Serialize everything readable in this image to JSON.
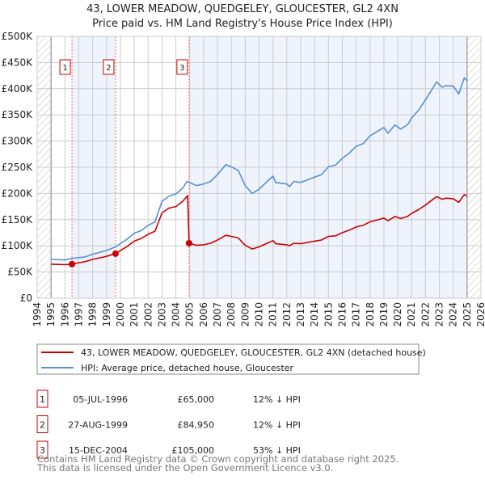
{
  "chart_data": {
    "type": "line",
    "title": "43, LOWER MEADOW, QUEDGELEY, GLOUCESTER, GL2 4XN",
    "subtitle": "Price paid vs. HM Land Registry's House Price Index (HPI)",
    "xlim": [
      1994,
      2026
    ],
    "ylim": [
      0,
      500000
    ],
    "x_ticks": [
      "1994",
      "1995",
      "1996",
      "1997",
      "1998",
      "1999",
      "2000",
      "2001",
      "2002",
      "2003",
      "2004",
      "2005",
      "2006",
      "2007",
      "2008",
      "2009",
      "2010",
      "2011",
      "2012",
      "2013",
      "2014",
      "2015",
      "2016",
      "2017",
      "2018",
      "2019",
      "2020",
      "2021",
      "2022",
      "2023",
      "2024",
      "2025",
      "2026"
    ],
    "y_ticks": [
      {
        "value": 0,
        "label": "£0"
      },
      {
        "value": 50000,
        "label": "£50K"
      },
      {
        "value": 100000,
        "label": "£100K"
      },
      {
        "value": 150000,
        "label": "£150K"
      },
      {
        "value": 200000,
        "label": "£200K"
      },
      {
        "value": 250000,
        "label": "£250K"
      },
      {
        "value": 300000,
        "label": "£300K"
      },
      {
        "value": 350000,
        "label": "£350K"
      },
      {
        "value": 400000,
        "label": "£400K"
      },
      {
        "value": 450000,
        "label": "£450K"
      },
      {
        "value": 500000,
        "label": "£500K"
      }
    ],
    "grid": true,
    "data_range": [
      1995,
      2025
    ],
    "colors": {
      "price": "#cc0000",
      "hpi": "#5b8fd4",
      "shade": "#eef3fc",
      "sale_line": "#ff6666"
    },
    "series": [
      {
        "name": "43, LOWER MEADOW, QUEDGELEY, GLOUCESTER, GL2 4XN (detached house)",
        "key": "price",
        "points": [
          [
            1995,
            65
          ],
          [
            1996,
            64
          ],
          [
            1996.5,
            65
          ],
          [
            1997.5,
            70
          ],
          [
            1998,
            74
          ],
          [
            1999,
            80
          ],
          [
            1999.65,
            85
          ],
          [
            2000.5,
            99
          ],
          [
            2001,
            109
          ],
          [
            2001.5,
            114
          ],
          [
            2002,
            122
          ],
          [
            2002.5,
            128
          ],
          [
            2003,
            163
          ],
          [
            2003.5,
            172
          ],
          [
            2004,
            175
          ],
          [
            2004.5,
            185
          ],
          [
            2004.85,
            196
          ],
          [
            2004.95,
            105
          ],
          [
            2005.5,
            101
          ],
          [
            2006,
            102
          ],
          [
            2006.5,
            105
          ],
          [
            2007,
            111
          ],
          [
            2007.6,
            120
          ],
          [
            2008,
            118
          ],
          [
            2008.5,
            115
          ],
          [
            2009,
            101
          ],
          [
            2009.5,
            94
          ],
          [
            2010,
            98
          ],
          [
            2010.5,
            104
          ],
          [
            2011,
            110
          ],
          [
            2011.2,
            104
          ],
          [
            2012,
            102
          ],
          [
            2012.2,
            100
          ],
          [
            2012.5,
            105
          ],
          [
            2013,
            104
          ],
          [
            2014,
            109
          ],
          [
            2014.5,
            111
          ],
          [
            2015,
            118
          ],
          [
            2015.5,
            119
          ],
          [
            2016,
            125
          ],
          [
            2016.5,
            130
          ],
          [
            2017,
            136
          ],
          [
            2017.5,
            139
          ],
          [
            2018,
            146
          ],
          [
            2018.5,
            149
          ],
          [
            2019,
            153
          ],
          [
            2019.3,
            148
          ],
          [
            2019.8,
            156
          ],
          [
            2020.2,
            152
          ],
          [
            2020.7,
            156
          ],
          [
            2021,
            162
          ],
          [
            2021.5,
            169
          ],
          [
            2022,
            178
          ],
          [
            2022.5,
            188
          ],
          [
            2022.8,
            194
          ],
          [
            2023.2,
            189
          ],
          [
            2023.5,
            191
          ],
          [
            2024,
            190
          ],
          [
            2024.4,
            183
          ],
          [
            2024.8,
            198
          ],
          [
            2025,
            195
          ]
        ]
      },
      {
        "name": "HPI: Average price, detached house, Gloucester",
        "key": "hpi",
        "points": [
          [
            1995,
            74
          ],
          [
            1996,
            73
          ],
          [
            1996.5,
            76
          ],
          [
            1997.5,
            79
          ],
          [
            1998,
            84
          ],
          [
            1999,
            91
          ],
          [
            1999.65,
            98
          ],
          [
            2000.5,
            113
          ],
          [
            2001,
            124
          ],
          [
            2001.5,
            129
          ],
          [
            2002,
            139
          ],
          [
            2002.5,
            146
          ],
          [
            2003,
            185
          ],
          [
            2003.5,
            195
          ],
          [
            2004,
            199
          ],
          [
            2004.5,
            210
          ],
          [
            2004.8,
            223
          ],
          [
            2005.5,
            215
          ],
          [
            2006,
            218
          ],
          [
            2006.5,
            223
          ],
          [
            2007,
            236
          ],
          [
            2007.6,
            255
          ],
          [
            2008,
            251
          ],
          [
            2008.5,
            244
          ],
          [
            2009,
            215
          ],
          [
            2009.5,
            200
          ],
          [
            2010,
            208
          ],
          [
            2010.5,
            221
          ],
          [
            2011,
            233
          ],
          [
            2011.2,
            221
          ],
          [
            2012,
            218
          ],
          [
            2012.2,
            213
          ],
          [
            2012.5,
            223
          ],
          [
            2013,
            221
          ],
          [
            2014,
            231
          ],
          [
            2014.5,
            236
          ],
          [
            2015,
            251
          ],
          [
            2015.5,
            254
          ],
          [
            2016,
            267
          ],
          [
            2016.5,
            277
          ],
          [
            2017,
            290
          ],
          [
            2017.5,
            295
          ],
          [
            2018,
            310
          ],
          [
            2018.5,
            318
          ],
          [
            2019,
            326
          ],
          [
            2019.3,
            315
          ],
          [
            2019.8,
            331
          ],
          [
            2020.2,
            323
          ],
          [
            2020.7,
            331
          ],
          [
            2021,
            344
          ],
          [
            2021.5,
            359
          ],
          [
            2022,
            379
          ],
          [
            2022.5,
            400
          ],
          [
            2022.8,
            413
          ],
          [
            2023.2,
            403
          ],
          [
            2023.5,
            406
          ],
          [
            2024,
            405
          ],
          [
            2024.4,
            390
          ],
          [
            2024.8,
            421
          ],
          [
            2025,
            415
          ]
        ]
      }
    ],
    "value_unit": "£K",
    "sales": [
      {
        "num": "1",
        "year": 1996.51,
        "value": 65
      },
      {
        "num": "2",
        "year": 1999.65,
        "value": 84.95
      },
      {
        "num": "3",
        "year": 2004.95,
        "value": 105
      }
    ]
  },
  "legend": {
    "price_label": "43, LOWER MEADOW, QUEDGELEY, GLOUCESTER, GL2 4XN (detached house)",
    "hpi_label": "HPI: Average price, detached house, Gloucester"
  },
  "transactions": [
    {
      "num": "1",
      "date": "05-JUL-1996",
      "price": "£65,000",
      "hpi": "12% ↓ HPI"
    },
    {
      "num": "2",
      "date": "27-AUG-1999",
      "price": "£84,950",
      "hpi": "12% ↓ HPI"
    },
    {
      "num": "3",
      "date": "15-DEC-2004",
      "price": "£105,000",
      "hpi": "53% ↓ HPI"
    }
  ],
  "footer": {
    "line1": "Contains HM Land Registry data © Crown copyright and database right 2025.",
    "line2": "This data is licensed under the Open Government Licence v3.0."
  }
}
